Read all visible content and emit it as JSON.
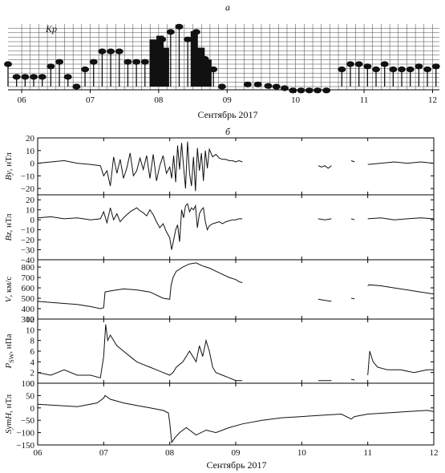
{
  "panel_labels": {
    "a": "а",
    "b": "б"
  },
  "chart_data": [
    {
      "type": "bar",
      "title": "",
      "ylabel": "Kp",
      "xlabel": "Сентябрь 2017",
      "x_ticks": [
        "06",
        "07",
        "08",
        "09",
        "10",
        "11",
        "12"
      ],
      "x_range": [
        5.8,
        12.1
      ],
      "ylim": [
        0,
        9
      ],
      "legend": "none",
      "grid": true,
      "bars": [
        {
          "t": 5.8,
          "kp": 3.0
        },
        {
          "t": 5.925,
          "kp": 1.3
        },
        {
          "t": 6.05,
          "kp": 1.3
        },
        {
          "t": 6.175,
          "kp": 1.3
        },
        {
          "t": 6.3,
          "kp": 1.3
        },
        {
          "t": 6.425,
          "kp": 2.7
        },
        {
          "t": 6.55,
          "kp": 3.3
        },
        {
          "t": 6.675,
          "kp": 1.3
        },
        {
          "t": 6.8,
          "kp": 0.0
        },
        {
          "t": 6.925,
          "kp": 2.3
        },
        {
          "t": 7.05,
          "kp": 3.3
        },
        {
          "t": 7.175,
          "kp": 4.7
        },
        {
          "t": 7.3,
          "kp": 4.7
        },
        {
          "t": 7.425,
          "kp": 4.7
        },
        {
          "t": 7.55,
          "kp": 3.3
        },
        {
          "t": 7.675,
          "kp": 3.3
        },
        {
          "t": 7.8,
          "kp": 3.3
        },
        {
          "t": 7.925,
          "kp": 5.7
        },
        {
          "t": 8.05,
          "kp": 6.3
        },
        {
          "t": 8.175,
          "kp": 7.3
        },
        {
          "t": 8.3,
          "kp": 8.0
        },
        {
          "t": 8.425,
          "kp": 6.3
        },
        {
          "t": 8.55,
          "kp": 7.3
        },
        {
          "t": 8.675,
          "kp": 3.7
        },
        {
          "t": 8.8,
          "kp": 2.3
        },
        {
          "t": 8.925,
          "kp": 0.0
        },
        {
          "t": 9.05,
          "kp": 0.0
        },
        {
          "t": 9.175,
          "kp": 0.0
        },
        {
          "t": 9.3,
          "kp": 0.0
        },
        {
          "t": 9.425,
          "kp": 0.0
        },
        {
          "t": 9.55,
          "kp": 0.0
        },
        {
          "t": 9.675,
          "kp": 0.0
        },
        {
          "t": 9.8,
          "kp": 0.0
        },
        {
          "t": 9.925,
          "kp": 0.0
        },
        {
          "t": 10.05,
          "kp": 0.0
        },
        {
          "t": 10.175,
          "kp": 0.0
        },
        {
          "t": 10.3,
          "kp": 0.0
        },
        {
          "t": 10.425,
          "kp": 0.0
        },
        {
          "t": 10.55,
          "kp": 0.0
        },
        {
          "t": 10.675,
          "kp": 2.3
        },
        {
          "t": 10.8,
          "kp": 3.0
        },
        {
          "t": 10.925,
          "kp": 3.0
        },
        {
          "t": 11.05,
          "kp": 2.7
        },
        {
          "t": 11.175,
          "kp": 2.3
        },
        {
          "t": 11.3,
          "kp": 3.0
        },
        {
          "t": 11.425,
          "kp": 2.3
        },
        {
          "t": 11.55,
          "kp": 2.3
        },
        {
          "t": 11.675,
          "kp": 2.3
        },
        {
          "t": 11.8,
          "kp": 2.7
        },
        {
          "t": 11.925,
          "kp": 2.3
        },
        {
          "t": 12.05,
          "kp": 2.7
        }
      ],
      "dark_bars": [
        {
          "t": 7.92,
          "kp": 6.3
        },
        {
          "t": 8.02,
          "kp": 6.8
        },
        {
          "t": 8.1,
          "kp": 5.2
        },
        {
          "t": 8.52,
          "kp": 7.4
        },
        {
          "t": 8.62,
          "kp": 5.2
        },
        {
          "t": 8.72,
          "kp": 3.6
        }
      ],
      "low_markers": [
        {
          "t": 9.3,
          "kp": 0.5
        },
        {
          "t": 9.45,
          "kp": 0.5
        },
        {
          "t": 9.6,
          "kp": 0.3
        },
        {
          "t": 9.72,
          "kp": 0.2
        },
        {
          "t": 9.84,
          "kp": 0.0
        },
        {
          "t": 9.96,
          "kp": -0.3
        },
        {
          "t": 10.08,
          "kp": -0.3
        },
        {
          "t": 10.2,
          "kp": -0.3
        },
        {
          "t": 10.32,
          "kp": -0.3
        },
        {
          "t": 10.45,
          "kp": -0.3
        }
      ]
    },
    {
      "type": "line",
      "xlabel": "Сентябрь 2017",
      "x_ticks": [
        "06",
        "07",
        "08",
        "09",
        "10",
        "11",
        "12"
      ],
      "x_range": [
        6,
        12
      ],
      "grid": false,
      "legend": "none",
      "panels": [
        {
          "ylabel_main": "By",
          "ylabel_unit": ", нТл",
          "ylim": [
            -25,
            20
          ],
          "yticks": [
            20,
            10,
            0,
            -10,
            -20
          ],
          "series": [
            {
              "x": [
                6.0,
                6.2,
                6.4,
                6.6,
                6.8,
                6.95,
                7.0,
                7.05,
                7.1,
                7.15,
                7.2,
                7.25,
                7.3,
                7.35,
                7.4,
                7.45,
                7.5,
                7.55,
                7.6,
                7.65,
                7.7,
                7.75,
                7.8,
                7.85,
                7.9,
                7.95,
                8.0,
                8.03,
                8.06,
                8.09,
                8.12,
                8.15,
                8.18,
                8.21,
                8.24,
                8.27,
                8.3,
                8.33,
                8.36,
                8.39,
                8.42,
                8.45,
                8.48,
                8.51,
                8.54,
                8.57,
                8.6,
                8.65,
                8.7,
                8.75,
                8.8,
                8.85,
                8.9,
                8.95,
                9.0,
                9.05,
                9.1
              ],
              "y": [
                0,
                1,
                2,
                0,
                -1,
                -2,
                -10,
                -6,
                -18,
                5,
                -8,
                3,
                -12,
                -4,
                8,
                -10,
                -6,
                4,
                -5,
                6,
                -12,
                7,
                -14,
                -2,
                6,
                -8,
                -3,
                -12,
                6,
                -15,
                14,
                -5,
                16,
                -3,
                -20,
                17,
                -8,
                -18,
                5,
                -22,
                12,
                -6,
                8,
                -14,
                10,
                -4,
                11,
                5,
                7,
                4,
                3,
                3,
                2,
                2,
                1,
                2,
                1
              ]
            },
            {
              "x": [
                10.25,
                10.3,
                10.35,
                10.4,
                10.45
              ],
              "y": [
                -2,
                -3,
                -2,
                -4,
                -2
              ]
            },
            {
              "x": [
                10.75,
                10.8
              ],
              "y": [
                2,
                1
              ]
            },
            {
              "x": [
                11.0,
                11.2,
                11.4,
                11.6,
                11.8,
                12.0
              ],
              "y": [
                -1,
                0,
                1,
                0,
                1,
                0
              ]
            }
          ]
        },
        {
          "ylabel_main": "Bz",
          "ylabel_unit": ", нТл",
          "ylim": [
            -40,
            25
          ],
          "yticks": [
            20,
            10,
            0,
            -10,
            -20,
            -30,
            -40
          ],
          "series": [
            {
              "x": [
                6.0,
                6.2,
                6.4,
                6.6,
                6.8,
                6.95,
                7.0,
                7.05,
                7.1,
                7.15,
                7.2,
                7.25,
                7.3,
                7.35,
                7.4,
                7.45,
                7.5,
                7.55,
                7.6,
                7.65,
                7.7,
                7.75,
                7.8,
                7.85,
                7.9,
                7.95,
                8.0,
                8.03,
                8.06,
                8.09,
                8.12,
                8.15,
                8.18,
                8.21,
                8.24,
                8.27,
                8.3,
                8.33,
                8.36,
                8.39,
                8.42,
                8.45,
                8.48,
                8.51,
                8.54,
                8.57,
                8.6,
                8.65,
                8.7,
                8.75,
                8.8,
                8.85,
                8.9,
                8.95,
                9.0,
                9.05,
                9.1
              ],
              "y": [
                2,
                3,
                1,
                2,
                0,
                1,
                8,
                -3,
                12,
                0,
                6,
                -2,
                2,
                5,
                8,
                10,
                12,
                9,
                7,
                4,
                10,
                5,
                -2,
                -8,
                -4,
                -12,
                -18,
                -30,
                -20,
                -10,
                -5,
                -22,
                10,
                2,
                14,
                16,
                8,
                12,
                10,
                14,
                -8,
                6,
                10,
                12,
                -2,
                -10,
                -6,
                -4,
                -3,
                -2,
                -4,
                -2,
                -1,
                0,
                0,
                1,
                1
              ]
            },
            {
              "x": [
                10.25,
                10.35,
                10.45
              ],
              "y": [
                1,
                0,
                1
              ]
            },
            {
              "x": [
                10.75,
                10.8
              ],
              "y": [
                1,
                0
              ]
            },
            {
              "x": [
                11.0,
                11.2,
                11.4,
                11.6,
                11.8,
                12.0
              ],
              "y": [
                1,
                2,
                0,
                1,
                2,
                1
              ]
            }
          ]
        },
        {
          "ylabel_main": "V",
          "ylabel_unit": ", км/с",
          "ylim": [
            300,
            870
          ],
          "yticks": [
            800,
            700,
            600,
            500,
            400,
            300
          ],
          "series": [
            {
              "x": [
                6.0,
                6.2,
                6.4,
                6.6,
                6.8,
                6.95,
                7.0,
                7.02,
                7.1,
                7.3,
                7.5,
                7.7,
                7.9,
                8.0,
                8.02,
                8.05,
                8.1,
                8.2,
                8.3,
                8.4,
                8.5,
                8.6,
                8.7,
                8.8,
                8.9,
                9.0,
                9.05,
                9.1
              ],
              "y": [
                470,
                460,
                450,
                440,
                420,
                400,
                410,
                560,
                570,
                590,
                580,
                560,
                500,
                490,
                620,
                700,
                760,
                800,
                830,
                840,
                810,
                790,
                760,
                730,
                700,
                680,
                660,
                650
              ]
            },
            {
              "x": [
                10.25,
                10.35,
                10.45
              ],
              "y": [
                490,
                480,
                470
              ]
            },
            {
              "x": [
                10.75,
                10.8
              ],
              "y": [
                500,
                495
              ]
            },
            {
              "x": [
                11.0,
                11.02,
                11.2,
                11.4,
                11.6,
                11.8,
                12.0
              ],
              "y": [
                620,
                630,
                620,
                600,
                580,
                560,
                540
              ]
            }
          ]
        },
        {
          "ylabel_main": "P",
          "ylabel_sub": "SW",
          "ylabel_unit": ", нПа",
          "ylim": [
            0,
            12
          ],
          "yticks": [
            12,
            10,
            8,
            6,
            4,
            2,
            0
          ],
          "series": [
            {
              "x": [
                6.0,
                6.2,
                6.4,
                6.6,
                6.8,
                6.95,
                7.0,
                7.03,
                7.06,
                7.1,
                7.2,
                7.3,
                7.4,
                7.5,
                7.6,
                7.7,
                7.8,
                7.9,
                8.0,
                8.05,
                8.1,
                8.2,
                8.3,
                8.4,
                8.45,
                8.5,
                8.55,
                8.6,
                8.65,
                8.7,
                8.8,
                8.9,
                9.0,
                9.05,
                9.1
              ],
              "y": [
                2.0,
                1.5,
                2.5,
                1.5,
                1.5,
                1.0,
                5,
                11,
                8,
                9,
                7,
                6,
                5,
                4,
                3.5,
                3,
                2.5,
                2,
                1.5,
                2,
                3,
                4,
                6,
                4,
                7,
                5,
                8,
                6,
                3,
                2,
                1.5,
                1,
                0.5,
                0.5,
                0.5
              ]
            },
            {
              "x": [
                10.25,
                10.35,
                10.45
              ],
              "y": [
                0.5,
                0.5,
                0.5
              ]
            },
            {
              "x": [
                10.75,
                10.8
              ],
              "y": [
                0.7,
                0.6
              ]
            },
            {
              "x": [
                11.0,
                11.03,
                11.08,
                11.15,
                11.3,
                11.5,
                11.7,
                11.9,
                12.0
              ],
              "y": [
                1.5,
                6,
                4,
                3,
                2.5,
                2.5,
                2,
                2.5,
                2.5
              ]
            }
          ]
        },
        {
          "ylabel_main": "SymH",
          "ylabel_unit": ", нТл",
          "ylim": [
            -150,
            100
          ],
          "yticks": [
            100,
            50,
            0,
            -50,
            -100,
            -150
          ],
          "series": [
            {
              "x": [
                6.0,
                6.3,
                6.6,
                6.9,
                7.0,
                7.02,
                7.1,
                7.3,
                7.5,
                7.7,
                7.9,
                7.98,
                8.0,
                8.03,
                8.08,
                8.15,
                8.25,
                8.4,
                8.55,
                8.7,
                8.9,
                9.1,
                9.4,
                9.7,
                10.0,
                10.3,
                10.6,
                10.75,
                10.8,
                11.0,
                11.3,
                11.6,
                11.9,
                12.0
              ],
              "y": [
                15,
                10,
                5,
                20,
                40,
                50,
                35,
                20,
                10,
                0,
                -10,
                -20,
                -60,
                -140,
                -120,
                -100,
                -80,
                -110,
                -90,
                -100,
                -80,
                -65,
                -50,
                -40,
                -35,
                -30,
                -25,
                -45,
                -35,
                -25,
                -20,
                -15,
                -10,
                -15
              ]
            }
          ]
        }
      ]
    }
  ]
}
